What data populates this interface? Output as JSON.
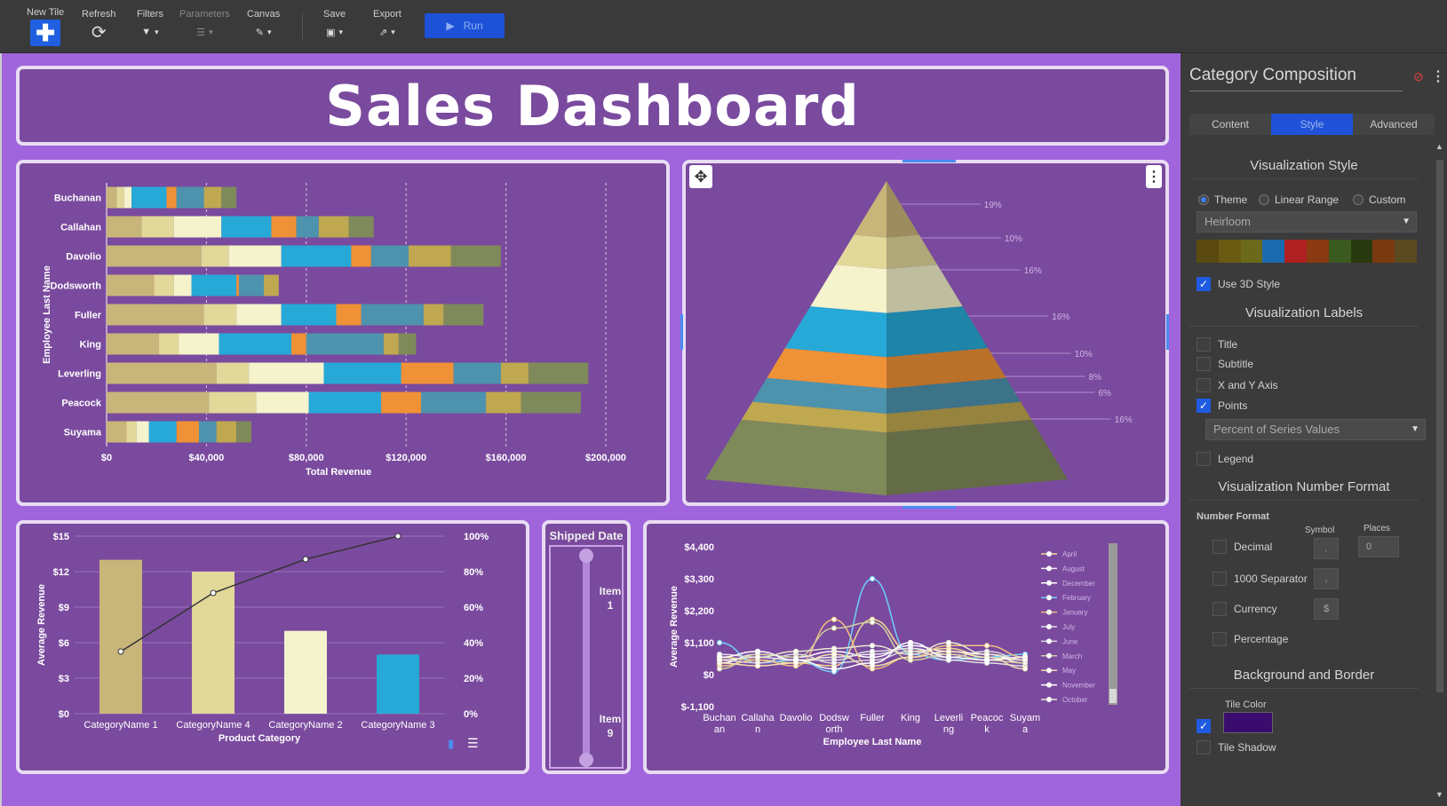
{
  "toolbar": {
    "new_tile": "New Tile",
    "refresh": "Refresh",
    "filters": "Filters",
    "parameters": "Parameters",
    "canvas": "Canvas",
    "save": "Save",
    "export": "Export",
    "run": "Run"
  },
  "dashboard": {
    "title": "Sales Dashboard"
  },
  "bar_chart": {
    "chart_data": {
      "type": "bar",
      "orientation": "horizontal-stacked",
      "ylabel": "Employee Last Name",
      "xlabel": "Total Revenue",
      "categories": [
        "Buchanan",
        "Callahan",
        "Davolio",
        "Dodsworth",
        "Fuller",
        "King",
        "Leverling",
        "Peacock",
        "Suyama"
      ],
      "x_ticks": [
        "$0",
        "$40,000",
        "$80,000",
        "$120,000",
        "$160,000",
        "$200,000"
      ],
      "xlim": [
        0,
        210000
      ],
      "segments": [
        [
          4000,
          3000,
          3000,
          14000,
          4000,
          11000,
          7000,
          6000
        ],
        [
          14000,
          13000,
          19000,
          20000,
          10000,
          9000,
          12000,
          10000
        ],
        [
          38000,
          11000,
          21000,
          28000,
          8000,
          15000,
          17000,
          20000
        ],
        [
          19000,
          8000,
          7000,
          18000,
          1000,
          10000,
          6000,
          0
        ],
        [
          39000,
          13000,
          18000,
          22000,
          10000,
          25000,
          8000,
          16000
        ],
        [
          21000,
          8000,
          16000,
          29000,
          6000,
          31000,
          6000,
          7000
        ],
        [
          44000,
          13000,
          30000,
          31000,
          21000,
          19000,
          11000,
          24000
        ],
        [
          41000,
          19000,
          21000,
          29000,
          16000,
          26000,
          14000,
          24000
        ],
        [
          8000,
          4000,
          5000,
          11000,
          9000,
          7000,
          8000,
          6000
        ]
      ],
      "segment_colors": [
        "#c8b57a",
        "#e2d89a",
        "#f4f3cc",
        "#27a9d8",
        "#ef9136",
        "#4d93ae",
        "#bfa84f",
        "#7f8a5a"
      ]
    }
  },
  "pyramid": {
    "chart_data": {
      "type": "pyramid",
      "labels": [
        "19%",
        "10%",
        "16%",
        "16%",
        "10%",
        "8%",
        "6%",
        "16%"
      ],
      "colors": [
        "#c8b57a",
        "#e2d89a",
        "#f4f3cc",
        "#27a9d8",
        "#ef9136",
        "#4d93ae",
        "#bfa84f",
        "#7f8a5a"
      ]
    }
  },
  "column_chart": {
    "chart_data": {
      "type": "bar",
      "xlabel": "Product Category",
      "ylabel": "Average Revenue",
      "categories": [
        "CategoryName 1",
        "CategoryName 4",
        "CategoryName 2",
        "CategoryName 3"
      ],
      "values": [
        13,
        12,
        7,
        5
      ],
      "colors": [
        "#c8b57a",
        "#e2d89a",
        "#f4f3cc",
        "#27a9d8"
      ],
      "ylim": [
        0,
        15
      ],
      "y_ticks": [
        "$0",
        "$3",
        "$6",
        "$9",
        "$12",
        "$15"
      ],
      "y2_ticks": [
        "0%",
        "20%",
        "40%",
        "60%",
        "80%",
        "100%"
      ],
      "cumulative_pct": [
        35,
        68,
        87,
        100
      ]
    }
  },
  "slider": {
    "title": "Shipped Date",
    "top_label": "Item 1",
    "bottom_label": "Item 9"
  },
  "line_chart": {
    "chart_data": {
      "type": "line",
      "ylabel": "Average Revenue",
      "xlabel": "Employee Last Name",
      "categories": [
        "Buchanan",
        "Callahan",
        "Davolio",
        "Dodsworth",
        "Fuller",
        "King",
        "Leverling",
        "Peacock",
        "Suyama"
      ],
      "x_ticks": [
        [
          "Buchan",
          "an"
        ],
        [
          "Callaha",
          "n"
        ],
        [
          "Davolio",
          ""
        ],
        [
          "Dodsw",
          "orth"
        ],
        [
          "Fuller",
          ""
        ],
        [
          "King",
          ""
        ],
        [
          "Leverli",
          "ng"
        ],
        [
          "Peacoc",
          "k"
        ],
        [
          "Suyam",
          "a"
        ]
      ],
      "y_ticks": [
        "$-1,100",
        "$0",
        "$1,100",
        "$2,200",
        "$3,300",
        "$4,400"
      ],
      "ylim": [
        -1100,
        4400
      ],
      "legend": [
        "April",
        "August",
        "December",
        "February",
        "January",
        "July",
        "June",
        "March",
        "May",
        "November",
        "October"
      ],
      "series": [
        {
          "name": "April",
          "color": "#f0d890",
          "values": [
            600,
            500,
            400,
            300,
            1900,
            800,
            900,
            600,
            500
          ]
        },
        {
          "name": "August",
          "color": "#eeeeee",
          "values": [
            500,
            600,
            500,
            600,
            700,
            900,
            700,
            500,
            600
          ]
        },
        {
          "name": "December",
          "color": "#ffffff",
          "values": [
            400,
            700,
            600,
            800,
            600,
            1000,
            800,
            700,
            400
          ]
        },
        {
          "name": "February",
          "color": "#6fd0ff",
          "values": [
            1100,
            400,
            500,
            100,
            3300,
            700,
            500,
            600,
            700
          ]
        },
        {
          "name": "January",
          "color": "#f2c080",
          "values": [
            300,
            500,
            300,
            1900,
            200,
            600,
            1000,
            1000,
            600
          ]
        },
        {
          "name": "July",
          "color": "#e0e0e0",
          "values": [
            700,
            600,
            500,
            500,
            800,
            900,
            500,
            400,
            300
          ]
        },
        {
          "name": "June",
          "color": "#d8d8d8",
          "values": [
            500,
            400,
            700,
            400,
            500,
            800,
            600,
            800,
            500
          ]
        },
        {
          "name": "March",
          "color": "#cfcfa0",
          "values": [
            200,
            700,
            600,
            1600,
            1800,
            500,
            700,
            500,
            400
          ]
        },
        {
          "name": "May",
          "color": "#f0e0b0",
          "values": [
            400,
            300,
            400,
            700,
            300,
            600,
            800,
            600,
            200
          ]
        },
        {
          "name": "November",
          "color": "#ffffff",
          "values": [
            600,
            800,
            500,
            200,
            400,
            1100,
            600,
            500,
            600
          ]
        },
        {
          "name": "October",
          "color": "#e8e8d0",
          "values": [
            500,
            600,
            800,
            900,
            1000,
            700,
            1100,
            700,
            500
          ]
        }
      ]
    }
  },
  "panel": {
    "title": "Category Composition",
    "tabs": [
      "Content",
      "Style",
      "Advanced"
    ],
    "viz_style": "Visualization Style",
    "radios": [
      "Theme",
      "Linear Range",
      "Custom"
    ],
    "theme_value": "Heirloom",
    "swatch_colors": [
      "#5a4a10",
      "#6b5a12",
      "#6a6a1a",
      "#1a6ab0",
      "#b02020",
      "#8a3a10",
      "#3a5a20",
      "#2a3a10",
      "#7a3a10",
      "#5a4a20"
    ],
    "use3d": "Use 3D Style",
    "viz_labels": "Visualization Labels",
    "label_opts": [
      "Title",
      "Subtitle",
      "X and Y Axis",
      "Points"
    ],
    "points_value": "Percent of Series Values",
    "legend": "Legend",
    "num_format": "Visualization Number Format",
    "number_format": "Number Format",
    "symbol": "Symbol",
    "places": "Places",
    "places_value": "0",
    "nf_opts": [
      "Decimal",
      "1000 Separator",
      "Currency",
      "Percentage"
    ],
    "nf_symbols": [
      ".",
      ",",
      "$",
      ""
    ],
    "bg_border": "Background and Border",
    "tile_color": "Tile Color",
    "tile_color_value": "#3a0c6e",
    "tile_shadow": "Tile Shadow"
  }
}
